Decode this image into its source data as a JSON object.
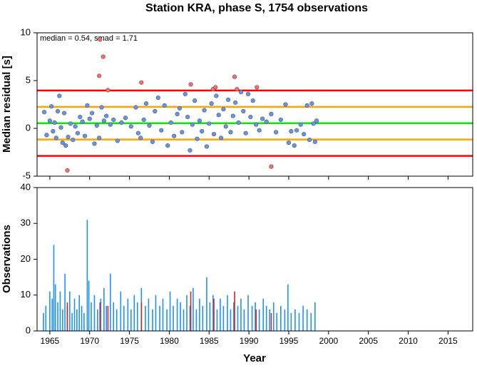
{
  "chart_data": [
    {
      "type": "scatter",
      "title": "Station KRA, phase S, 1754 observations",
      "ylabel": "Median residual [s]",
      "annotation": "median = 0.54, smad = 1.71",
      "xlim": [
        1963.4,
        2018.1
      ],
      "xticks": [
        1965,
        1970,
        1975,
        1980,
        1985,
        1990,
        1995,
        2000,
        2005,
        2010,
        2015
      ],
      "ylim": [
        -5,
        10
      ],
      "yticks": [
        -5,
        0,
        5,
        10
      ],
      "hlines": [
        {
          "value": 3.96,
          "color": "#ff0000"
        },
        {
          "value": 2.25,
          "color": "#ffa500"
        },
        {
          "value": 0.54,
          "color": "#00ee00"
        },
        {
          "value": -1.17,
          "color": "#ffa500"
        },
        {
          "value": -2.88,
          "color": "#ff0000"
        }
      ],
      "series": [
        {
          "color": "#6495ed",
          "x": [
            1964.3,
            1964.6,
            1965.0,
            1965.2,
            1965.4,
            1965.6,
            1965.8,
            1966.0,
            1966.2,
            1966.4,
            1966.6,
            1966.8,
            1967.0,
            1967.3,
            1967.6,
            1967.9,
            1968.2,
            1968.5,
            1968.8,
            1969.1,
            1969.4,
            1969.7,
            1970.0,
            1970.3,
            1970.6,
            1970.9,
            1971.2,
            1971.5,
            1971.8,
            1972.1,
            1972.6,
            1973.0,
            1973.5,
            1974.0,
            1974.5,
            1975.2,
            1975.8,
            1976.1,
            1976.4,
            1976.8,
            1977.1,
            1977.5,
            1977.9,
            1978.2,
            1978.6,
            1979.0,
            1979.4,
            1979.8,
            1980.2,
            1980.6,
            1981.0,
            1981.3,
            1981.6,
            1982.0,
            1982.3,
            1982.6,
            1982.9,
            1983.2,
            1983.5,
            1983.8,
            1984.1,
            1984.4,
            1984.7,
            1985.0,
            1985.3,
            1985.6,
            1985.9,
            1986.2,
            1986.5,
            1986.8,
            1987.1,
            1987.4,
            1987.7,
            1988.0,
            1988.3,
            1988.7,
            1989.0,
            1989.3,
            1989.6,
            1989.9,
            1990.2,
            1990.5,
            1990.9,
            1991.3,
            1991.7,
            1992.2,
            1992.8,
            1993.4,
            1994.0,
            1994.6,
            1995.0,
            1995.3,
            1995.7,
            1996.0,
            1996.5,
            1996.9,
            1997.3,
            1997.6,
            1997.9,
            1998.1,
            1998.3,
            1998.5
          ],
          "values": [
            1.7,
            -0.7,
            0.8,
            2.3,
            -0.3,
            0.6,
            -1.0,
            1.8,
            3.4,
            0.1,
            -1.5,
            1.6,
            -1.8,
            -0.9,
            0.5,
            -1.2,
            0.2,
            -0.5,
            1.2,
            0.7,
            -0.8,
            2.4,
            1.0,
            1.6,
            -1.6,
            0.3,
            -1.0,
            2.2,
            0.8,
            1.3,
            0.4,
            0.9,
            -1.3,
            0.6,
            1.1,
            0.2,
            2.2,
            -0.5,
            -1.0,
            0.9,
            2.6,
            0.3,
            -1.4,
            1.8,
            3.2,
            -0.2,
            2.4,
            -1.8,
            0.6,
            -0.8,
            1.5,
            2.1,
            -0.4,
            3.6,
            1.2,
            -2.3,
            0.4,
            2.9,
            -1.1,
            0.8,
            -0.3,
            1.9,
            -1.9,
            0.5,
            2.6,
            -0.6,
            3.4,
            1.4,
            -1.0,
            2.0,
            0.2,
            3.0,
            -0.4,
            1.3,
            2.7,
            0.6,
            3.8,
            1.8,
            -0.5,
            3.6,
            1.2,
            2.9,
            0.4,
            -0.2,
            1.0,
            0.7,
            1.5,
            -0.4,
            0.9,
            2.5,
            -1.5,
            -0.3,
            -1.8,
            -0.2,
            0.4,
            -0.6,
            2.4,
            -1.2,
            2.6,
            0.5,
            -1.4,
            0.8
          ]
        },
        {
          "color": "#ff6a6a",
          "x": [
            1967.2,
            1971.2,
            1971.3,
            1971.7,
            1972.3,
            1976.5,
            1982.7,
            1985.5,
            1985.8,
            1988.2,
            1988.5,
            1991.0,
            1992.8
          ],
          "values": [
            -4.4,
            5.5,
            9.3,
            7.5,
            4.0,
            4.8,
            4.6,
            4.1,
            4.3,
            5.4,
            4.1,
            4.3,
            -4.0
          ]
        }
      ]
    },
    {
      "type": "bar",
      "ylabel": "Observations",
      "xlabel": "Year",
      "xlim": [
        1963.4,
        2018.1
      ],
      "xticks": [
        1965,
        1970,
        1975,
        1980,
        1985,
        1990,
        1995,
        2000,
        2005,
        2010,
        2015
      ],
      "ylim": [
        0,
        40
      ],
      "yticks": [
        0,
        10,
        20,
        30,
        40
      ],
      "series": [
        {
          "color": "#1e90ff",
          "x": [
            1964.2,
            1964.5,
            1965.0,
            1965.3,
            1965.5,
            1965.7,
            1966.0,
            1966.3,
            1966.6,
            1966.9,
            1967.2,
            1967.5,
            1967.8,
            1968.1,
            1968.4,
            1968.7,
            1969.0,
            1969.3,
            1969.7,
            1969.9,
            1970.2,
            1970.6,
            1971.0,
            1971.4,
            1971.8,
            1972.1,
            1972.6,
            1973.0,
            1973.4,
            1973.9,
            1974.3,
            1974.8,
            1975.2,
            1975.6,
            1976.0,
            1976.5,
            1977.0,
            1977.4,
            1977.9,
            1978.3,
            1978.8,
            1979.2,
            1979.7,
            1980.1,
            1980.5,
            1981.0,
            1981.4,
            1981.8,
            1982.2,
            1982.6,
            1983.0,
            1983.4,
            1983.8,
            1984.2,
            1984.7,
            1985.1,
            1985.5,
            1986.0,
            1986.4,
            1986.8,
            1987.3,
            1987.7,
            1988.1,
            1988.6,
            1989.0,
            1989.4,
            1989.9,
            1990.4,
            1990.8,
            1991.3,
            1991.8,
            1992.2,
            1992.6,
            1993.1,
            1993.5,
            1994.0,
            1994.5,
            1994.9,
            1995.3,
            1995.8,
            1996.3,
            1996.8,
            1997.3,
            1997.8,
            1998.3
          ],
          "values": [
            5,
            7,
            11,
            9,
            24,
            13,
            8,
            11,
            6,
            16,
            7,
            11,
            5,
            9,
            6,
            10,
            7,
            5,
            31,
            14,
            8,
            10,
            6,
            9,
            12,
            7,
            16,
            8,
            6,
            11,
            7,
            9,
            6,
            10,
            8,
            12,
            7,
            9,
            6,
            10,
            7,
            9,
            6,
            11,
            7,
            9,
            8,
            6,
            10,
            7,
            12,
            6,
            9,
            7,
            15,
            8,
            10,
            6,
            9,
            7,
            10,
            6,
            8,
            7,
            9,
            6,
            10,
            7,
            8,
            6,
            9,
            7,
            6,
            8,
            5,
            7,
            6,
            13,
            5,
            6,
            5,
            7,
            6,
            5,
            8
          ]
        },
        {
          "color": "#cd2626",
          "x": [
            1967.2,
            1971.3,
            1972.3,
            1976.5,
            1982.7,
            1985.6,
            1988.2,
            1990.9,
            1992.8
          ],
          "values": [
            8,
            8,
            7,
            8,
            11,
            9,
            11,
            6,
            5
          ]
        }
      ]
    }
  ]
}
